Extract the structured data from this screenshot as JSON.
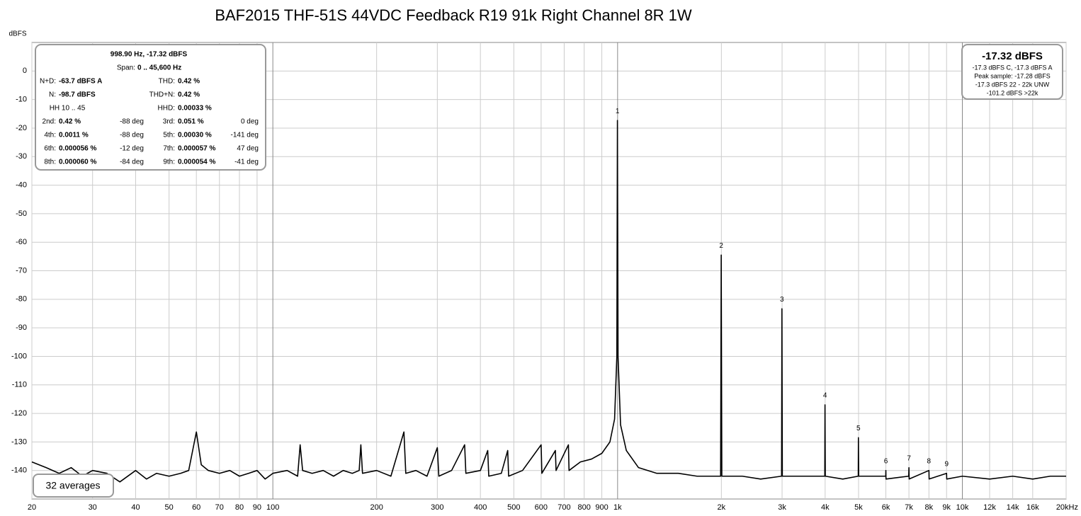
{
  "chart_data": {
    "type": "line",
    "title": "BAF2015 THF-51S 44VDC Feedback R19 91k Right Channel 8R 1W",
    "y_label": "dBFS",
    "log_x": true,
    "grid": true,
    "color": "#000000",
    "xlim": [
      20,
      20000
    ],
    "ylim": [
      -150,
      10
    ],
    "xticks": [
      20,
      30,
      40,
      50,
      60,
      70,
      80,
      90,
      100,
      200,
      300,
      400,
      500,
      600,
      700,
      800,
      900,
      {
        "value": 1000,
        "label": "1k"
      },
      {
        "value": 2000,
        "label": "2k"
      },
      {
        "value": 3000,
        "label": "3k"
      },
      {
        "value": 4000,
        "label": "4k"
      },
      {
        "value": 5000,
        "label": "5k"
      },
      {
        "value": 6000,
        "label": "6k"
      },
      {
        "value": 7000,
        "label": "7k"
      },
      {
        "value": 8000,
        "label": "8k"
      },
      {
        "value": 9000,
        "label": "9k"
      },
      {
        "value": 10000,
        "label": "10k"
      },
      {
        "value": 12000,
        "label": "12k"
      },
      {
        "value": 14000,
        "label": "14k"
      },
      {
        "value": 16000,
        "label": "16k"
      },
      {
        "value": 20000,
        "label": "20kHz"
      }
    ],
    "yticks": [
      0,
      -10,
      -20,
      -30,
      -40,
      -50,
      -60,
      -70,
      -80,
      -90,
      -100,
      -110,
      -120,
      -130,
      -140
    ],
    "x": [
      20,
      22,
      24,
      26,
      28,
      30,
      33,
      36,
      40,
      43,
      46,
      50,
      54,
      57,
      60,
      62,
      65,
      70,
      75,
      80,
      85,
      90,
      95,
      100,
      110,
      118,
      120,
      122,
      130,
      140,
      150,
      160,
      170,
      178,
      180,
      182,
      200,
      220,
      240,
      243,
      260,
      280,
      300,
      303,
      330,
      360,
      363,
      400,
      420,
      423,
      460,
      480,
      483,
      530,
      600,
      603,
      660,
      663,
      720,
      723,
      780,
      840,
      900,
      950,
      980,
      995,
      998.9,
      1003,
      1020,
      1060,
      1150,
      1300,
      1500,
      1700,
      1990,
      1998,
      2006,
      2300,
      2600,
      2990,
      2997,
      3005,
      3500,
      3990,
      3996,
      4004,
      4500,
      4990,
      4995,
      5005,
      5995,
      6000,
      6005,
      6990,
      7000,
      7010,
      8000,
      8010,
      9000,
      9010,
      10000,
      12000,
      14000,
      16000,
      18000,
      20000
    ],
    "values": [
      -137,
      -139,
      -141,
      -139,
      -142,
      -140,
      -141,
      -144,
      -140,
      -143,
      -141,
      -142,
      -141,
      -140,
      -126.5,
      -138,
      -140,
      -141,
      -140,
      -142,
      -141,
      -140,
      -143,
      -141,
      -140,
      -142,
      -131,
      -140,
      -141,
      -140,
      -142,
      -140,
      -141,
      -140,
      -131,
      -141,
      -140,
      -142,
      -126.5,
      -141,
      -140,
      -142,
      -132,
      -142,
      -140,
      -131,
      -141,
      -140,
      -133,
      -142,
      -141,
      -133,
      -142,
      -140,
      -131,
      -141,
      -133,
      -140,
      -131,
      -140,
      -137,
      -136,
      -134,
      -130,
      -122,
      -100,
      -17.32,
      -100,
      -124,
      -133,
      -139,
      -141,
      -141,
      -142,
      -142,
      -64.5,
      -142,
      -142,
      -143,
      -142,
      -83.3,
      -142,
      -142,
      -142,
      -117,
      -142,
      -143,
      -142,
      -128.5,
      -142,
      -142,
      -140,
      -143,
      -142,
      -139,
      -143,
      -140,
      -143,
      -141,
      -143,
      -142,
      -143,
      -142,
      -143,
      -142,
      -142
    ],
    "harmonics": [
      {
        "number": 1,
        "freq": 998.9,
        "level": -17.32
      },
      {
        "number": 2,
        "freq": 1998,
        "level": -64.5
      },
      {
        "number": 3,
        "freq": 2997,
        "level": -83.3
      },
      {
        "number": 4,
        "freq": 3996,
        "level": -117
      },
      {
        "number": 5,
        "freq": 4995,
        "level": -128.5
      },
      {
        "number": 6,
        "freq": 6000,
        "level": -140
      },
      {
        "number": 7,
        "freq": 7000,
        "level": -139
      },
      {
        "number": 8,
        "freq": 8000,
        "level": -140
      },
      {
        "number": 9,
        "freq": 9000,
        "level": -141
      }
    ],
    "info_box": {
      "header": "998.90 Hz, -17.32 dBFS",
      "span_label": "Span:",
      "span_value": "0 .. 45,600 Hz",
      "rows": [
        [
          "N+D:",
          "-63.7 dBFS A",
          "THD:",
          "0.42 %"
        ],
        [
          "N:",
          "-98.7 dBFS",
          "THD+N:",
          "0.42 %"
        ],
        [
          "HH 10 .. 45",
          "",
          "HHD:",
          "0.00033 %"
        ]
      ],
      "harm_rows": [
        [
          "2nd:",
          "0.42 %",
          "-88 deg",
          "3rd:",
          "0.051 %",
          "0 deg"
        ],
        [
          "4th:",
          "0.0011 %",
          "-88 deg",
          "5th:",
          "0.00030 %",
          "-141 deg"
        ],
        [
          "6th:",
          "0.000056 %",
          "-12 deg",
          "7th:",
          "0.000057 %",
          "47 deg"
        ],
        [
          "8th:",
          "0.000060 %",
          "-84 deg",
          "9th:",
          "0.000054 %",
          "-41 deg"
        ]
      ]
    },
    "level_box": {
      "main": "-17.32 dBFS",
      "lines": [
        "-17.3 dBFS C, -17.3 dBFS A",
        "Peak sample: -17.28 dBFS",
        "-17.3 dBFS 22 - 22k UNW",
        "-101.2 dBFS >22k"
      ]
    },
    "averages": "32 averages"
  }
}
